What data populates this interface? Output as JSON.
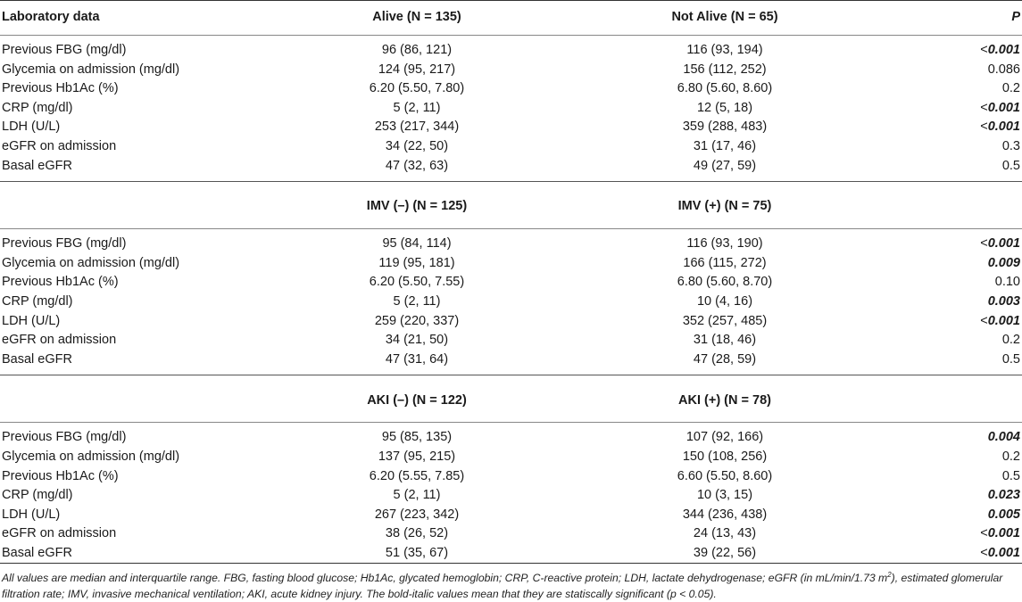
{
  "header": {
    "label": "Laboratory data",
    "p": "P"
  },
  "groups": [
    {
      "col1": "Alive (N = 135)",
      "col2": "Not Alive (N = 65)",
      "rows": [
        {
          "label": "Previous FBG (mg/dl)",
          "v1": "96 (86, 121)",
          "v2": "116 (93, 194)",
          "p_prefix": "<",
          "p": "0.001",
          "sig": true
        },
        {
          "label": "Glycemia on admission (mg/dl)",
          "v1": "124 (95, 217)",
          "v2": "156 (112, 252)",
          "p_prefix": "",
          "p": "0.086",
          "sig": false
        },
        {
          "label": "Previous Hb1Ac (%)",
          "v1": "6.20 (5.50, 7.80)",
          "v2": "6.80 (5.60, 8.60)",
          "p_prefix": "",
          "p": "0.2",
          "sig": false
        },
        {
          "label": "CRP (mg/dl)",
          "v1": "5 (2, 11)",
          "v2": "12 (5, 18)",
          "p_prefix": "<",
          "p": "0.001",
          "sig": true
        },
        {
          "label": "LDH (U/L)",
          "v1": "253 (217, 344)",
          "v2": "359 (288, 483)",
          "p_prefix": "<",
          "p": "0.001",
          "sig": true
        },
        {
          "label": "eGFR on admission",
          "v1": "34 (22, 50)",
          "v2": "31 (17, 46)",
          "p_prefix": "",
          "p": "0.3",
          "sig": false
        },
        {
          "label": "Basal eGFR",
          "v1": "47 (32, 63)",
          "v2": "49 (27, 59)",
          "p_prefix": "",
          "p": "0.5",
          "sig": false
        }
      ]
    },
    {
      "col1": "IMV (–) (N = 125)",
      "col2": "IMV (+) (N = 75)",
      "rows": [
        {
          "label": "Previous FBG (mg/dl)",
          "v1": "95 (84, 114)",
          "v2": "116 (93, 190)",
          "p_prefix": "<",
          "p": "0.001",
          "sig": true
        },
        {
          "label": "Glycemia on admission (mg/dl)",
          "v1": "119 (95, 181)",
          "v2": "166 (115, 272)",
          "p_prefix": "",
          "p": "0.009",
          "sig": true
        },
        {
          "label": "Previous Hb1Ac (%)",
          "v1": "6.20 (5.50, 7.55)",
          "v2": "6.80 (5.60, 8.70)",
          "p_prefix": "",
          "p": "0.10",
          "sig": false
        },
        {
          "label": "CRP (mg/dl)",
          "v1": "5 (2, 11)",
          "v2": "10 (4, 16)",
          "p_prefix": "",
          "p": "0.003",
          "sig": true
        },
        {
          "label": "LDH (U/L)",
          "v1": "259 (220, 337)",
          "v2": "352 (257, 485)",
          "p_prefix": "<",
          "p": "0.001",
          "sig": true
        },
        {
          "label": "eGFR on admission",
          "v1": "34 (21, 50)",
          "v2": "31 (18, 46)",
          "p_prefix": "",
          "p": "0.2",
          "sig": false
        },
        {
          "label": "Basal eGFR",
          "v1": "47 (31, 64)",
          "v2": "47 (28, 59)",
          "p_prefix": "",
          "p": "0.5",
          "sig": false
        }
      ]
    },
    {
      "col1": "AKI (–) (N = 122)",
      "col2": "AKI (+) (N = 78)",
      "rows": [
        {
          "label": "Previous FBG (mg/dl)",
          "v1": "95 (85, 135)",
          "v2": "107 (92, 166)",
          "p_prefix": "",
          "p": "0.004",
          "sig": true
        },
        {
          "label": "Glycemia on admission (mg/dl)",
          "v1": "137 (95, 215)",
          "v2": "150 (108, 256)",
          "p_prefix": "",
          "p": "0.2",
          "sig": false
        },
        {
          "label": "Previous Hb1Ac (%)",
          "v1": "6.20 (5.55, 7.85)",
          "v2": "6.60 (5.50, 8.60)",
          "p_prefix": "",
          "p": "0.5",
          "sig": false
        },
        {
          "label": "CRP (mg/dl)",
          "v1": "5 (2, 11)",
          "v2": "10 (3, 15)",
          "p_prefix": "",
          "p": "0.023",
          "sig": true
        },
        {
          "label": "LDH (U/L)",
          "v1": "267 (223, 342)",
          "v2": "344 (236, 438)",
          "p_prefix": "",
          "p": "0.005",
          "sig": true
        },
        {
          "label": "eGFR on admission",
          "v1": "38 (26, 52)",
          "v2": "24 (13, 43)",
          "p_prefix": "<",
          "p": "0.001",
          "sig": true
        },
        {
          "label": "Basal eGFR",
          "v1": "51 (35, 67)",
          "v2": "39 (22, 56)",
          "p_prefix": "<",
          "p": "0.001",
          "sig": true
        }
      ]
    }
  ],
  "footnote": {
    "part1": "All values are median and interquartile range. FBG, fasting blood glucose; Hb1Ac, glycated hemoglobin; CRP, C-reactive protein; LDH, lactate dehydrogenase; eGFR (in mL/min/1.73 m",
    "sup": "2",
    "part2": "), estimated glomerular filtration rate; IMV, invasive mechanical ventilation; AKI, acute kidney injury. The bold-italic values mean that they are statiscally significant (p < 0.05)."
  }
}
